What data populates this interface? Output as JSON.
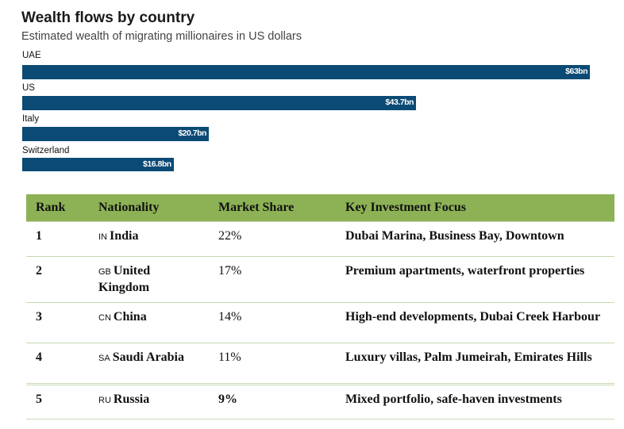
{
  "chart_data": {
    "type": "bar",
    "orientation": "horizontal",
    "title": "Wealth flows by country",
    "subtitle": "Estimated wealth of migrating millionaires in US dollars",
    "categories": [
      "UAE",
      "US",
      "Italy",
      "Switzerland"
    ],
    "values": [
      63,
      43.7,
      20.7,
      16.8
    ],
    "value_labels": [
      "$63bn",
      "$43.7bn",
      "$20.7bn",
      "$16.8bn"
    ],
    "unit": "US$ billions",
    "xlim": [
      0,
      63
    ],
    "bar_color": "#0b4a74"
  },
  "table": {
    "header_color": "#8db255",
    "columns": [
      "Rank",
      "Nationality",
      "Market Share",
      "Key Investment Focus"
    ],
    "rows": [
      {
        "rank": "1",
        "code": "IN",
        "nationality": "India",
        "share": "22%",
        "focus": "Dubai Marina, Business Bay, Downtown"
      },
      {
        "rank": "2",
        "code": "GB",
        "nationality": "United Kingdom",
        "share": "17%",
        "focus": "Premium apartments, waterfront properties"
      },
      {
        "rank": "3",
        "code": "CN",
        "nationality": "China",
        "share": "14%",
        "focus": "High-end developments, Dubai Creek Harbour"
      },
      {
        "rank": "4",
        "code": "SA",
        "nationality": "Saudi Arabia",
        "share": "11%",
        "focus": "Luxury villas, Palm Jumeirah, Emirates Hills"
      },
      {
        "rank": "5",
        "code": "RU",
        "nationality": "Russia",
        "share": "9%",
        "focus": "Mixed portfolio, safe-haven investments"
      }
    ]
  }
}
